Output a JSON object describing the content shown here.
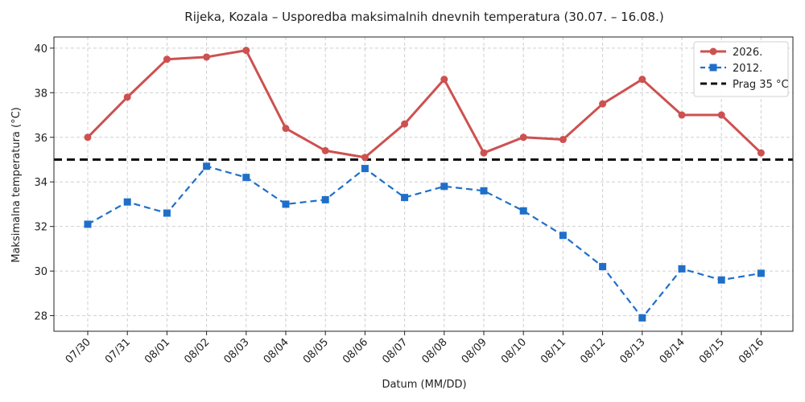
{
  "chart_data": {
    "type": "line",
    "title": "Rijeka, Kozala – Usporedba maksimalnih dnevnih temperatura (30.07. – 16.08.)",
    "xlabel": "Datum (MM/DD)",
    "ylabel": "Maksimalna temperatura (°C)",
    "categories": [
      "07/30",
      "07/31",
      "08/01",
      "08/02",
      "08/03",
      "08/04",
      "08/05",
      "08/06",
      "08/07",
      "08/08",
      "08/09",
      "08/10",
      "08/11",
      "08/12",
      "08/13",
      "08/14",
      "08/15",
      "08/16"
    ],
    "ylim": [
      27.3,
      40.5
    ],
    "yticks": [
      28,
      30,
      32,
      34,
      36,
      38,
      40
    ],
    "grid": true,
    "legend_position": "top-right",
    "series": [
      {
        "name": "2026.",
        "color": "#cd5150",
        "marker": "circle",
        "line_style": "solid",
        "values": [
          36.0,
          37.8,
          39.5,
          39.6,
          39.9,
          36.4,
          35.4,
          35.1,
          36.6,
          38.6,
          35.3,
          36.0,
          35.9,
          37.5,
          38.6,
          37.0,
          37.0,
          35.3
        ]
      },
      {
        "name": "2012.",
        "color": "#1f6fc9",
        "marker": "square",
        "line_style": "dashed",
        "values": [
          32.1,
          33.1,
          32.6,
          34.7,
          34.2,
          33.0,
          33.2,
          34.6,
          33.3,
          33.8,
          33.6,
          32.7,
          31.6,
          30.2,
          27.9,
          30.1,
          29.6,
          29.9
        ]
      }
    ],
    "threshold": {
      "name": "Prag 35 °C",
      "value": 35,
      "color": "#111111",
      "line_style": "dashed"
    }
  }
}
